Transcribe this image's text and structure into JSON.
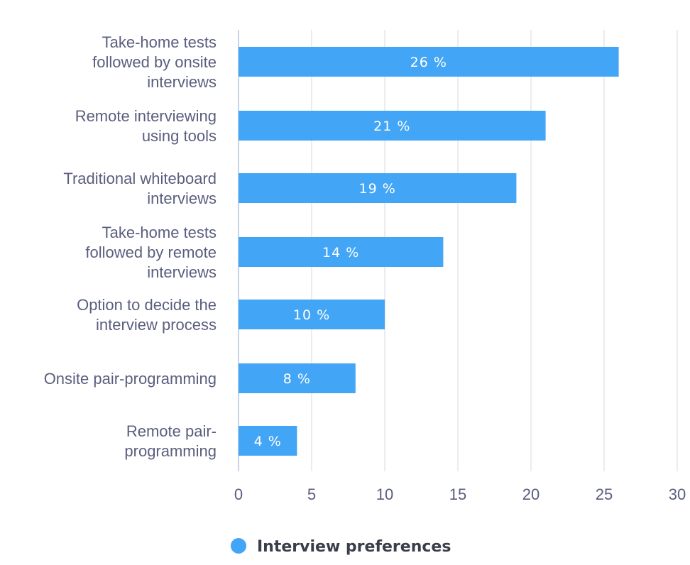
{
  "chart_data": {
    "type": "bar",
    "orientation": "horizontal",
    "categories": [
      "Take-home tests followed by onsite interviews",
      "Remote interviewing using tools",
      "Traditional whiteboard interviews",
      "Take-home tests followed by remote interviews",
      "Option to decide the interview process",
      "Onsite pair-programming",
      "Remote pair-programming"
    ],
    "category_lines": [
      [
        "Take-home tests",
        "followed by onsite",
        "interviews"
      ],
      [
        "Remote interviewing",
        "using tools"
      ],
      [
        "Traditional whiteboard",
        "interviews"
      ],
      [
        "Take-home tests",
        "followed by remote",
        "interviews"
      ],
      [
        "Option to decide the",
        "interview process"
      ],
      [
        "Onsite pair-programming"
      ],
      [
        "Remote pair-",
        "programming"
      ]
    ],
    "series": [
      {
        "name": "Interview preferences",
        "values": [
          26,
          21,
          19,
          14,
          10,
          8,
          4
        ],
        "labels": [
          "26 %",
          "21 %",
          "19 %",
          "14 %",
          "10 %",
          "8 %",
          "4 %"
        ]
      }
    ],
    "xlim": [
      0,
      30
    ],
    "xticks": [
      "0",
      "5",
      "10",
      "15",
      "20",
      "25",
      "30"
    ],
    "grid": true,
    "legend_position": "bottom-center",
    "colors": {
      "bar": "#42a5f5",
      "grid": "#e3e5ea",
      "axis": "#c9d3e8",
      "text": "#5a5e7e",
      "legend_text": "#3a3d4a"
    }
  }
}
